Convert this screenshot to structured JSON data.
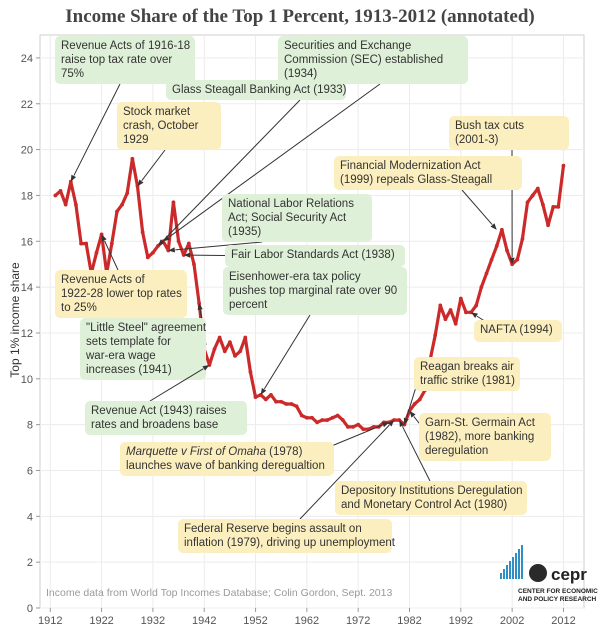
{
  "chart_data": {
    "type": "line",
    "title": "Income Share of the Top 1 Percent, 1913-2012 (annotated)",
    "ylabel": "Top 1% income share",
    "xlabel": "",
    "xlim": [
      1910,
      2016
    ],
    "ylim": [
      0,
      25
    ],
    "x_ticks": [
      1912,
      1922,
      1932,
      1942,
      1952,
      1962,
      1972,
      1982,
      1992,
      2002,
      2012
    ],
    "y_ticks": [
      0,
      2,
      4,
      6,
      8,
      10,
      12,
      14,
      16,
      18,
      20,
      22,
      24
    ],
    "grid": true,
    "line_color": "#cc2a2a",
    "series": [
      {
        "x": [
          1913,
          1914,
          1915,
          1916,
          1917,
          1918,
          1919,
          1920,
          1921,
          1922,
          1923,
          1924,
          1925,
          1926,
          1927,
          1928,
          1929,
          1930,
          1931,
          1932,
          1933,
          1934,
          1935,
          1936,
          1937,
          1938,
          1939,
          1940,
          1941,
          1942,
          1943,
          1944,
          1945,
          1946,
          1947,
          1948,
          1949,
          1950,
          1951,
          1952,
          1953,
          1954,
          1955,
          1956,
          1957,
          1958,
          1959,
          1960,
          1961,
          1962,
          1963,
          1964,
          1965,
          1966,
          1967,
          1968,
          1969,
          1970,
          1971,
          1972,
          1973,
          1974,
          1975,
          1976,
          1977,
          1978,
          1979,
          1980,
          1981,
          1982,
          1983,
          1984,
          1985,
          1986,
          1987,
          1988,
          1989,
          1990,
          1991,
          1992,
          1993,
          1994,
          1995,
          1996,
          1997,
          1998,
          1999,
          2000,
          2001,
          2002,
          2003,
          2004,
          2005,
          2006,
          2007,
          2008,
          2009,
          2010,
          2011,
          2012
        ],
        "values": [
          18.0,
          18.2,
          17.6,
          18.6,
          17.6,
          15.9,
          15.9,
          14.6,
          15.5,
          16.3,
          14.6,
          15.9,
          17.3,
          17.6,
          18.1,
          19.6,
          18.4,
          16.4,
          15.3,
          15.5,
          15.8,
          16.0,
          15.6,
          17.7,
          16.0,
          15.4,
          15.9,
          15.0,
          13.3,
          11.3,
          10.6,
          11.3,
          11.8,
          11.2,
          11.6,
          11.0,
          11.2,
          11.8,
          10.3,
          9.2,
          9.3,
          9.1,
          9.3,
          9.0,
          9.0,
          8.9,
          8.9,
          8.8,
          8.4,
          8.3,
          8.3,
          8.1,
          8.2,
          8.2,
          8.3,
          8.4,
          8.2,
          7.9,
          7.9,
          8.0,
          7.8,
          7.8,
          7.9,
          7.9,
          8.1,
          8.1,
          8.2,
          8.2,
          8.0,
          8.6,
          8.9,
          9.1,
          9.5,
          10.8,
          11.9,
          13.2,
          12.6,
          13.0,
          12.4,
          13.5,
          12.9,
          12.9,
          13.2,
          14.0,
          14.6,
          15.2,
          15.8,
          16.5,
          15.6,
          15.0,
          15.2,
          16.1,
          17.7,
          18.0,
          18.3,
          17.6,
          16.7,
          17.5,
          17.5,
          19.3
        ]
      }
    ],
    "annotations": [
      {
        "id": "a1",
        "lines": [
          "Revenue Acts of 1916-18",
          "raise top tax rate over",
          "75%"
        ],
        "color": "#dff0d8",
        "year": 1916,
        "value": 18.6
      },
      {
        "id": "a2",
        "lines": [
          "Securities and Exchange",
          "Commission (SEC) established",
          "(1934)"
        ],
        "color": "#dff0d8",
        "year": 1934,
        "value": 16.0
      },
      {
        "id": "a3",
        "lines": [
          "Glass Steagall Banking Act (1933)"
        ],
        "color": "#dff0d8",
        "year": 1933,
        "value": 15.8
      },
      {
        "id": "a4",
        "lines": [
          "Stock market",
          "crash, October",
          "1929"
        ],
        "color": "#fcefbf",
        "year": 1929,
        "value": 18.4
      },
      {
        "id": "a5",
        "lines": [
          "Bush tax cuts",
          "(2001-3)"
        ],
        "color": "#fcefbf",
        "year": 2002,
        "value": 15.0
      },
      {
        "id": "a6",
        "lines": [
          "Financial Modernization Act",
          "(1999) repeals Glass-Steagall"
        ],
        "color": "#fcefbf",
        "year": 1999,
        "value": 16.5
      },
      {
        "id": "a7",
        "lines": [
          "National Labor Relations",
          "Act; Social Security Act",
          "(1935)"
        ],
        "color": "#dff0d8",
        "year": 1935,
        "value": 15.6
      },
      {
        "id": "a8",
        "lines": [
          "Fair Labor Standards Act (1938)"
        ],
        "color": "#dff0d8",
        "year": 1938,
        "value": 15.4
      },
      {
        "id": "a9",
        "lines": [
          "Revenue Acts of",
          "1922-28 lower top rates",
          "to 25%"
        ],
        "color": "#fcefbf",
        "year": 1922,
        "value": 16.3
      },
      {
        "id": "a10",
        "lines": [
          "Eisenhower-era tax policy",
          "pushes top marginal rate over 90",
          "percent"
        ],
        "color": "#dff0d8",
        "year": 1953,
        "value": 9.3
      },
      {
        "id": "a11",
        "lines": [
          "\"Little Steel\" agreement",
          "sets template for",
          "war-era wage",
          "increases (1941)"
        ],
        "color": "#dff0d8",
        "year": 1941,
        "value": 13.3
      },
      {
        "id": "a12",
        "lines": [
          "NAFTA (1994)"
        ],
        "color": "#fcefbf",
        "year": 1994,
        "value": 12.9
      },
      {
        "id": "a13",
        "lines": [
          "Reagan breaks air",
          "traffic strike (1981)"
        ],
        "color": "#fcefbf",
        "year": 1981,
        "value": 8.0
      },
      {
        "id": "a14",
        "lines": [
          "Revenue Act (1943) raises",
          "rates and broadens base"
        ],
        "color": "#dff0d8",
        "year": 1943,
        "value": 10.6
      },
      {
        "id": "a15",
        "lines": [
          "Garn-St. Germain Act",
          "(1982), more banking",
          "deregulation"
        ],
        "color": "#fcefbf",
        "year": 1982,
        "value": 8.6
      },
      {
        "id": "a16",
        "lines": [
          "Marquette v First of Omaha (1978)",
          "launches wave of banking deregualtion"
        ],
        "color": "#fcefbf",
        "year": 1978,
        "value": 8.1
      },
      {
        "id": "a17",
        "lines": [
          "Depository Institutions Deregulation",
          "and Monetary Control Act (1980)"
        ],
        "color": "#fcefbf",
        "year": 1980,
        "value": 8.2
      },
      {
        "id": "a18",
        "lines": [
          "Federal Reserve begins assault on",
          "inflation (1979), driving up unemployment"
        ],
        "color": "#fcefbf",
        "year": 1979,
        "value": 8.2
      }
    ]
  },
  "source_note": "Income data from World Top Incomes Database; Colin Gordon, Sept. 2013",
  "logo": {
    "name": "cepr",
    "subtitle_line1": "CENTER FOR ECONOMIC",
    "subtitle_line2": "AND POLICY RESEARCH",
    "bar_color": "#2f8fc4",
    "dot_color": "#2a2a2a"
  }
}
